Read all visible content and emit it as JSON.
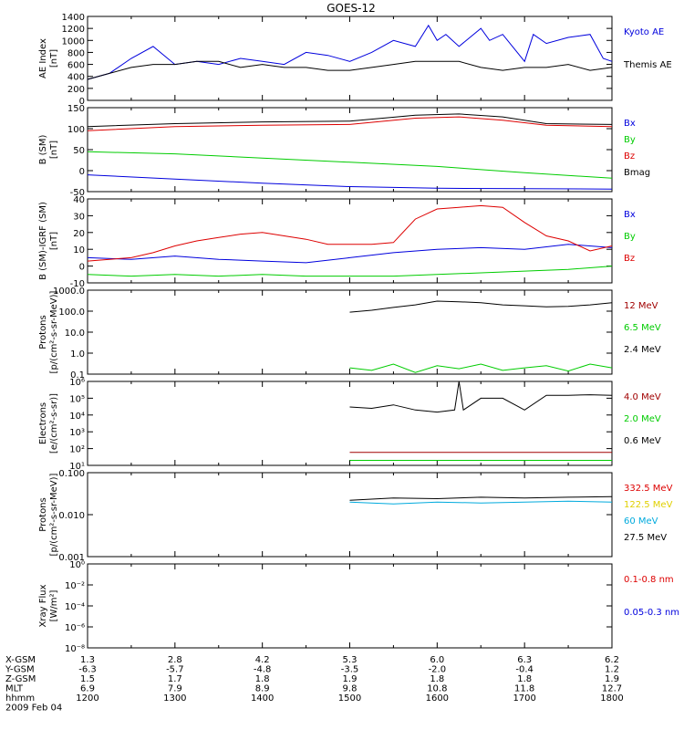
{
  "title": "GOES-12",
  "colors": {
    "black": "#000000",
    "blue": "#0000dd",
    "red": "#dd0000",
    "green": "#00cc00",
    "darkred": "#a00000",
    "yellow": "#e0d000",
    "cyan": "#00aadd"
  },
  "chart_data": [
    {
      "id": "ae",
      "type": "line",
      "ylabel_lines": [
        "AE Index",
        "[nT]"
      ],
      "ylim": [
        0,
        1400
      ],
      "yticks": [
        "0",
        "200",
        "400",
        "600",
        "800",
        "1000",
        "1200",
        "1400"
      ],
      "scale": "linear",
      "series": [
        {
          "name": "Kyoto AE",
          "color": "#0000dd",
          "x": [
            12.0,
            12.25,
            12.5,
            12.75,
            13.0,
            13.25,
            13.5,
            13.75,
            14.0,
            14.25,
            14.5,
            14.75,
            15.0,
            15.25,
            15.5,
            15.75,
            15.9,
            16.0,
            16.1,
            16.25,
            16.5,
            16.6,
            16.75,
            17.0,
            17.1,
            17.25,
            17.5,
            17.75,
            17.9,
            18.0
          ],
          "y": [
            350,
            450,
            700,
            900,
            600,
            650,
            600,
            700,
            650,
            600,
            800,
            750,
            650,
            800,
            1000,
            900,
            1250,
            1000,
            1100,
            900,
            1200,
            1000,
            1100,
            650,
            1100,
            950,
            1050,
            1100,
            700,
            650
          ]
        },
        {
          "name": "Themis AE",
          "color": "#000000",
          "x": [
            12.0,
            12.25,
            12.5,
            12.75,
            13.0,
            13.25,
            13.5,
            13.75,
            14.0,
            14.25,
            14.5,
            14.75,
            15.0,
            15.25,
            15.5,
            15.75,
            16.0,
            16.25,
            16.5,
            16.75,
            17.0,
            17.25,
            17.5,
            17.75,
            18.0
          ],
          "y": [
            350,
            450,
            550,
            600,
            600,
            650,
            650,
            550,
            600,
            550,
            550,
            500,
            500,
            550,
            600,
            650,
            650,
            650,
            550,
            500,
            550,
            550,
            600,
            500,
            550
          ]
        }
      ]
    },
    {
      "id": "bsm",
      "type": "line",
      "ylabel_lines": [
        "B (SM)",
        "[nT]"
      ],
      "ylim": [
        -50,
        150
      ],
      "yticks": [
        "-50",
        "0",
        "50",
        "100",
        "150"
      ],
      "scale": "linear",
      "series": [
        {
          "name": "Bx",
          "color": "#0000dd",
          "x": [
            12,
            13,
            14,
            15,
            16,
            17,
            18
          ],
          "y": [
            -10,
            -20,
            -30,
            -38,
            -42,
            -43,
            -44
          ]
        },
        {
          "name": "By",
          "color": "#00cc00",
          "x": [
            12,
            13,
            14,
            15,
            16,
            17,
            18
          ],
          "y": [
            45,
            40,
            30,
            20,
            10,
            -5,
            -18
          ]
        },
        {
          "name": "Bz",
          "color": "#dd0000",
          "x": [
            12,
            13,
            14,
            15,
            15.75,
            16.25,
            16.75,
            17.25,
            18
          ],
          "y": [
            95,
            105,
            108,
            110,
            125,
            128,
            120,
            108,
            105
          ]
        },
        {
          "name": "Bmag",
          "color": "#000000",
          "x": [
            12,
            13,
            14,
            15,
            15.75,
            16.25,
            16.75,
            17.25,
            18
          ],
          "y": [
            105,
            112,
            116,
            118,
            132,
            135,
            128,
            112,
            110
          ]
        }
      ]
    },
    {
      "id": "bigrf",
      "type": "line",
      "ylabel_lines": [
        "B (SM)-IGRF (SM)",
        "[nT]"
      ],
      "ylim": [
        -10,
        40
      ],
      "yticks": [
        "-10",
        "0",
        "10",
        "20",
        "30",
        "40"
      ],
      "scale": "linear",
      "series": [
        {
          "name": "Bx",
          "color": "#0000dd",
          "x": [
            12,
            12.5,
            13,
            13.5,
            14,
            14.5,
            15,
            15.5,
            16,
            16.5,
            17,
            17.5,
            18
          ],
          "y": [
            5,
            4,
            6,
            4,
            3,
            2,
            5,
            8,
            10,
            11,
            10,
            13,
            11
          ]
        },
        {
          "name": "By",
          "color": "#00cc00",
          "x": [
            12,
            12.5,
            13,
            13.5,
            14,
            14.5,
            15,
            15.5,
            16,
            16.5,
            17,
            17.5,
            18
          ],
          "y": [
            -5,
            -6,
            -5,
            -6,
            -5,
            -6,
            -6,
            -6,
            -5,
            -4,
            -3,
            -2,
            0
          ]
        },
        {
          "name": "Bz",
          "color": "#dd0000",
          "x": [
            12,
            12.25,
            12.5,
            12.75,
            13,
            13.25,
            13.5,
            13.75,
            14,
            14.25,
            14.5,
            14.75,
            15,
            15.25,
            15.5,
            15.75,
            16,
            16.25,
            16.5,
            16.75,
            17,
            17.25,
            17.5,
            17.75,
            18
          ],
          "y": [
            3,
            4,
            5,
            8,
            12,
            15,
            17,
            19,
            20,
            18,
            16,
            13,
            13,
            13,
            14,
            28,
            34,
            35,
            36,
            35,
            26,
            18,
            15,
            9,
            12
          ]
        }
      ]
    },
    {
      "id": "protons1",
      "type": "line",
      "ylabel_lines": [
        "Protons",
        "[p/(cm²-s-sr-MeV)]"
      ],
      "ylim": [
        0.1,
        1000
      ],
      "yticks": [
        "0.1",
        "1.0",
        "10.0",
        "100.0",
        "1000.0"
      ],
      "scale": "log",
      "series": [
        {
          "name": "12 MeV",
          "color": "#a00000",
          "x": [],
          "y": []
        },
        {
          "name": "6.5 MeV",
          "color": "#00cc00",
          "x": [
            15.0,
            15.25,
            15.5,
            15.75,
            16.0,
            16.25,
            16.5,
            16.75,
            17.0,
            17.25,
            17.5,
            17.75,
            18.0
          ],
          "y": [
            0.2,
            0.15,
            0.3,
            0.12,
            0.25,
            0.18,
            0.3,
            0.15,
            0.2,
            0.25,
            0.14,
            0.3,
            0.2
          ]
        },
        {
          "name": "2.4 MeV",
          "color": "#000000",
          "x": [
            15.0,
            15.25,
            15.5,
            15.75,
            16.0,
            16.25,
            16.5,
            16.75,
            17.0,
            17.25,
            17.5,
            17.75,
            18.0
          ],
          "y": [
            90,
            110,
            150,
            200,
            300,
            280,
            250,
            200,
            180,
            160,
            170,
            200,
            250
          ]
        }
      ]
    },
    {
      "id": "electrons",
      "type": "line",
      "ylabel_lines": [
        "Electrons",
        "[e/(cm²-s-sr)]"
      ],
      "ylim": [
        10,
        1000000
      ],
      "yticks": [
        "10¹",
        "10²",
        "10³",
        "10⁴",
        "10⁵",
        "10⁶"
      ],
      "scale": "log",
      "series": [
        {
          "name": "4.0 MeV",
          "color": "#a00000",
          "x": [
            15.0,
            15.5,
            16.0,
            16.5,
            17.0,
            17.5,
            18.0
          ],
          "y": [
            60,
            60,
            60,
            60,
            60,
            60,
            60
          ]
        },
        {
          "name": "2.0 MeV",
          "color": "#00cc00",
          "x": [
            15.0,
            15.5,
            16.0,
            16.5,
            17.0,
            17.5,
            18.0
          ],
          "y": [
            20,
            20,
            20,
            20,
            20,
            20,
            20
          ]
        },
        {
          "name": "0.6 MeV",
          "color": "#000000",
          "x": [
            15.0,
            15.25,
            15.5,
            15.75,
            16.0,
            16.2,
            16.25,
            16.3,
            16.5,
            16.75,
            17.0,
            17.25,
            17.5,
            17.75,
            18.0
          ],
          "y": [
            30000,
            25000,
            40000,
            20000,
            15000,
            20000,
            1000000,
            20000,
            100000,
            100000,
            20000,
            150000,
            150000,
            160000,
            150000
          ]
        }
      ]
    },
    {
      "id": "protons2",
      "type": "line",
      "ylabel_lines": [
        "Protons",
        "[p/(cm²-s-sr-MeV)]"
      ],
      "ylim": [
        0.001,
        0.1
      ],
      "yticks": [
        "0.001",
        "0.010",
        "0.100"
      ],
      "scale": "log",
      "series": [
        {
          "name": "332.5 MeV",
          "color": "#dd0000",
          "x": [],
          "y": []
        },
        {
          "name": "122.5 MeV",
          "color": "#e0d000",
          "x": [],
          "y": []
        },
        {
          "name": "60 MeV",
          "color": "#00aadd",
          "x": [
            15.0,
            15.5,
            16.0,
            16.5,
            17.0,
            17.5,
            18.0
          ],
          "y": [
            0.02,
            0.018,
            0.02,
            0.019,
            0.02,
            0.021,
            0.02
          ]
        },
        {
          "name": "27.5 MeV",
          "color": "#000000",
          "x": [
            15.0,
            15.5,
            16.0,
            16.5,
            17.0,
            17.5,
            18.0
          ],
          "y": [
            0.022,
            0.025,
            0.024,
            0.026,
            0.025,
            0.026,
            0.027
          ]
        }
      ]
    },
    {
      "id": "xray",
      "type": "line",
      "ylabel_lines": [
        "Xray  Flux",
        "[W/m²]"
      ],
      "ylim": [
        1e-08,
        1
      ],
      "yticks": [
        "10⁻⁸",
        "10⁻⁶",
        "10⁻⁴",
        "10⁻²",
        "10⁰"
      ],
      "scale": "log",
      "series": [
        {
          "name": "0.1-0.8 nm",
          "color": "#dd0000",
          "x": [],
          "y": []
        },
        {
          "name": "0.05-0.3 nm",
          "color": "#0000dd",
          "x": [],
          "y": []
        }
      ]
    }
  ],
  "xaxis": {
    "range": [
      12,
      18
    ],
    "ticks": [
      "1200",
      "1300",
      "1400",
      "1500",
      "1600",
      "1700",
      "1800"
    ],
    "rows": [
      {
        "label": "X-GSM",
        "values": [
          "1.3",
          "2.8",
          "4.2",
          "5.3",
          "6.0",
          "6.3",
          "6.2"
        ]
      },
      {
        "label": "Y-GSM",
        "values": [
          "-6.3",
          "-5.7",
          "-4.8",
          "-3.5",
          "-2.0",
          "-0.4",
          "1.2"
        ]
      },
      {
        "label": "Z-GSM",
        "values": [
          "1.5",
          "1.7",
          "1.8",
          "1.9",
          "1.8",
          "1.8",
          "1.9"
        ]
      },
      {
        "label": "MLT",
        "values": [
          "6.9",
          "7.9",
          "8.9",
          "9.8",
          "10.8",
          "11.8",
          "12.7"
        ]
      },
      {
        "label": "hhmm",
        "values": [
          "1200",
          "1300",
          "1400",
          "1500",
          "1600",
          "1700",
          "1800"
        ]
      }
    ],
    "date": "2009 Feb 04"
  }
}
